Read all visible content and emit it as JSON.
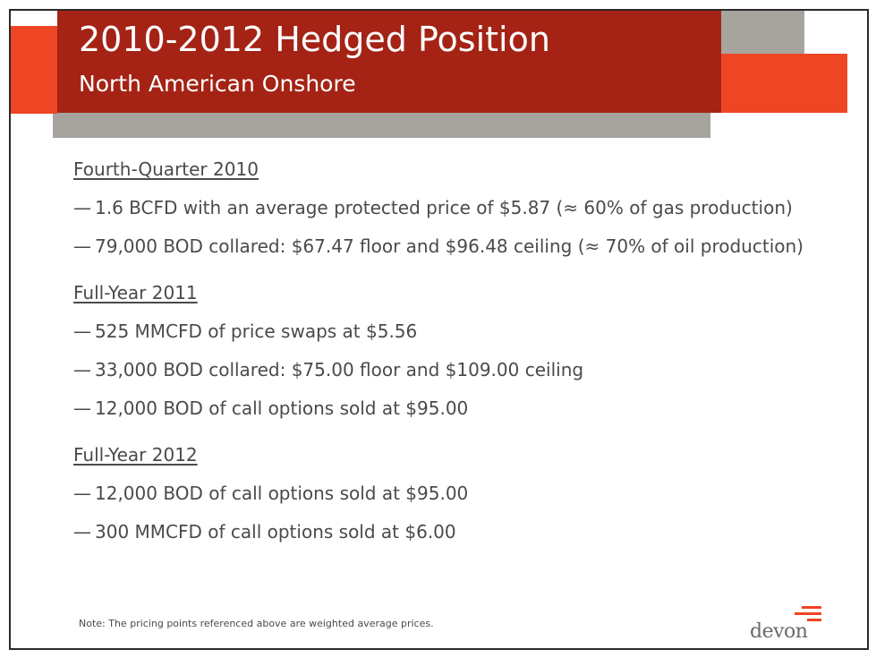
{
  "header": {
    "title": "2010-2012 Hedged Position",
    "subtitle": "North American Onshore"
  },
  "sections": [
    {
      "heading": "Fourth-Quarter 2010",
      "bullets": [
        "1.6 BCFD with an average protected price of $5.87 (≈ 60% of gas production)",
        "79,000 BOD collared: $67.47 floor and $96.48 ceiling (≈ 70% of oil production)"
      ]
    },
    {
      "heading": "Full-Year 2011",
      "bullets": [
        "525 MMCFD of price swaps at $5.56",
        "33,000 BOD collared: $75.00 floor and $109.00 ceiling",
        "12,000 BOD of call options sold at $95.00"
      ]
    },
    {
      "heading": "Full-Year 2012",
      "bullets": [
        "12,000 BOD of call options sold at $95.00",
        "300 MMCFD of call options sold at $6.00"
      ]
    }
  ],
  "bullet_marker": "—",
  "footer": {
    "note": "Note: The pricing points referenced above are weighted average prices.",
    "logo_text": "devon"
  },
  "colors": {
    "header_red": "#a42315",
    "accent_orange": "#ee4524",
    "accent_gray": "#a7a39e",
    "body_text": "#4a4a4a"
  }
}
